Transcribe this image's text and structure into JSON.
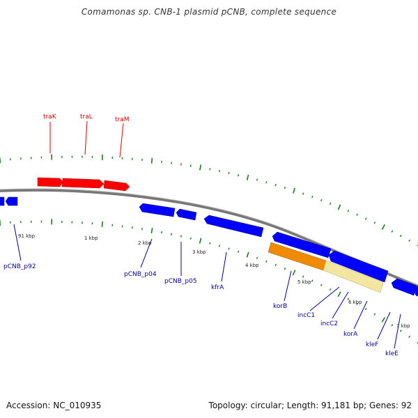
{
  "title": "Comamonas sp. CNB-1 plasmid pCNB, complete sequence",
  "accession": "Accession: NC_010935",
  "summary": "Topology: circular; Length: 91,181 bp; Genes: 92",
  "colors": {
    "forward_gene": "#ff0000",
    "reverse_gene": "#0000ff",
    "orange_feature": "#f08a00",
    "yellow_feature": "#f2e6a0",
    "backbone": "#888888",
    "ticks": "#1a7a1a",
    "forward_label": "#cc0000",
    "reverse_label": "#00008b",
    "kbp_label": "#222222"
  },
  "forward_labels": [
    "traK",
    "traL",
    "traM"
  ],
  "reverse_labels": [
    "pCNB_p92",
    "pCNB_p04",
    "pCNB_p05",
    "kfrA",
    "korB",
    "incC1",
    "incC2",
    "korA",
    "kleF",
    "kleE"
  ],
  "kbp_labels": [
    "91 kbp",
    "1 kbp",
    "2 kbp",
    "3 kbp",
    "4 kbp",
    "5 kbp",
    "6 kbp",
    "7 kbp"
  ]
}
